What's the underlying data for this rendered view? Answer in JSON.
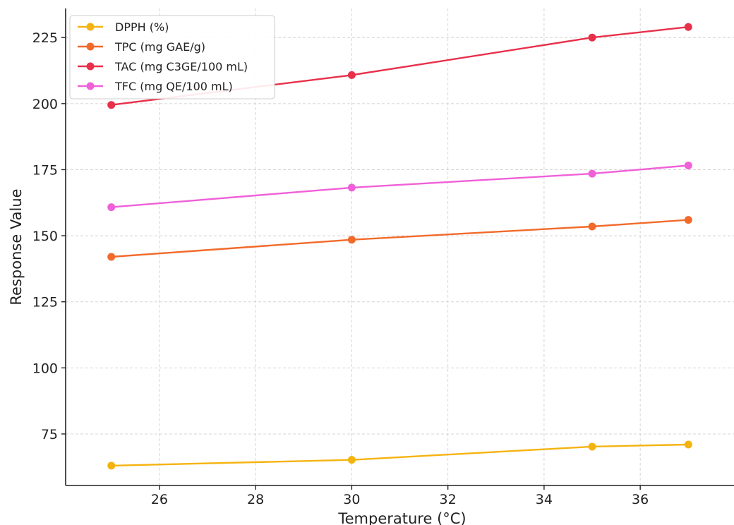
{
  "chart_data": {
    "type": "line",
    "title": "",
    "xlabel": "Temperature (°C)",
    "ylabel": "Response Value",
    "x": [
      25,
      30,
      35,
      37
    ],
    "xlim": [
      24.05,
      37.95
    ],
    "ylim": [
      55.5,
      236
    ],
    "xticks": [
      26,
      28,
      30,
      32,
      34,
      36
    ],
    "yticks": [
      75,
      100,
      125,
      150,
      175,
      200,
      225
    ],
    "grid": true,
    "legend_position": "top-left",
    "series": [
      {
        "name": "DPPH (%)",
        "color": "#f5b30f",
        "values": [
          63.0,
          65.2,
          70.2,
          71.0
        ]
      },
      {
        "name": "TPC (mg GAE/g)",
        "color": "#f26a2a",
        "values": [
          142.0,
          148.5,
          153.5,
          156.0
        ]
      },
      {
        "name": "TAC (mg C3GE/100 mL)",
        "color": "#e8304a",
        "values": [
          199.5,
          210.8,
          225.0,
          229.0
        ]
      },
      {
        "name": "TFC (mg QE/100 mL)",
        "color": "#f060d8",
        "values": [
          160.8,
          168.2,
          173.5,
          176.6
        ]
      }
    ]
  }
}
